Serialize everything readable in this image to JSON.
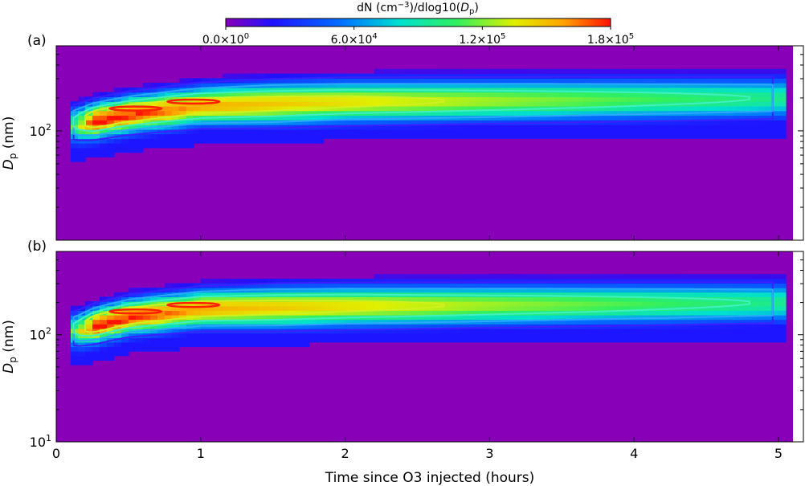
{
  "chart_data": [
    {
      "type": "heatmap",
      "panel_label": "(a)",
      "xlabel": "",
      "ylabel": "D_p (nm)",
      "xlim": [
        0,
        5.1
      ],
      "ylim": [
        10,
        600
      ],
      "yscale": "log",
      "y_tick_labels": [
        "10^2"
      ],
      "peak_diameter_nm": [
        {
          "x": 0.15,
          "y": 120
        },
        {
          "x": 0.5,
          "y": 145
        },
        {
          "x": 1.0,
          "y": 170
        },
        {
          "x": 2.0,
          "y": 185
        },
        {
          "x": 3.0,
          "y": 190
        },
        {
          "x": 4.0,
          "y": 195
        },
        {
          "x": 5.0,
          "y": 200
        }
      ],
      "max_contour_locations": [
        {
          "x": 0.55,
          "y": 160
        },
        {
          "x": 0.95,
          "y": 185
        }
      ]
    },
    {
      "type": "heatmap",
      "panel_label": "(b)",
      "xlabel": "Time since O3 injected (hours)",
      "ylabel": "D_p (nm)",
      "xlim": [
        0,
        5.1
      ],
      "ylim": [
        10,
        600
      ],
      "yscale": "log",
      "x_ticks": [
        0,
        1,
        2,
        3,
        4,
        5
      ],
      "x_tick_labels": [
        "0",
        "1",
        "2",
        "3",
        "4",
        "5"
      ],
      "y_tick_labels": [
        "10^1",
        "10^2"
      ],
      "peak_diameter_nm": [
        {
          "x": 0.15,
          "y": 115
        },
        {
          "x": 0.5,
          "y": 150
        },
        {
          "x": 1.0,
          "y": 175
        },
        {
          "x": 2.0,
          "y": 185
        },
        {
          "x": 3.0,
          "y": 190
        },
        {
          "x": 4.0,
          "y": 195
        },
        {
          "x": 5.0,
          "y": 200
        }
      ],
      "max_contour_locations": [
        {
          "x": 0.55,
          "y": 165
        },
        {
          "x": 0.95,
          "y": 190
        }
      ]
    }
  ],
  "colorbar": {
    "label_prefix": "dN (cm",
    "label_exp": "−3",
    "label_suffix": ")/dlog10(",
    "label_var": "D",
    "label_var_sub": "p",
    "label_end": ")",
    "ticks": [
      {
        "mant": "0.0",
        "exp": "0"
      },
      {
        "mant": "6.0",
        "exp": "4"
      },
      {
        "mant": "1.2",
        "exp": "5"
      },
      {
        "mant": "1.8",
        "exp": "5"
      }
    ],
    "range": [
      0,
      180000
    ],
    "colormap": "rainbow",
    "background_color": "#8800b8"
  },
  "axis_text": {
    "ylabel_main": "D",
    "ylabel_sub": "p",
    "ylabel_unit": " (nm)",
    "ten": "10",
    "exp_1": "1",
    "exp_2": "2",
    "times": "×10"
  }
}
